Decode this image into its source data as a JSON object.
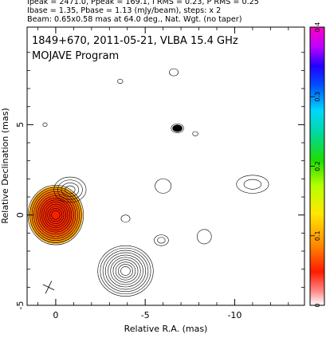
{
  "header": {
    "line1": "Ipeak = 2471.0, Ppeak = 169.1, I RMS = 0.23, P RMS = 0.25",
    "line2": "Ibase = 1.35, Pbase = 1.13 (mJy/beam), steps: x 2",
    "line3": "Beam: 0.65x0.58 mas at 64.0 deg., Nat. Wgt. (no taper)"
  },
  "chart_data": {
    "type": "contour",
    "title": "1849+670, 2011-05-21, VLBA 15.4 GHz",
    "subtitle": "MOJAVE Program",
    "xlabel": "Relative R.A. (mas)",
    "ylabel": "Relative Declination (mas)",
    "xlim": [
      1.6,
      -13.9
    ],
    "ylim": [
      -5.0,
      10.4
    ],
    "x_ticks": [
      {
        "value": 0,
        "label": "0"
      },
      {
        "value": -5,
        "label": "-5"
      },
      {
        "value": -10,
        "label": "-10"
      }
    ],
    "y_ticks": [
      {
        "value": -5,
        "label": "-5"
      },
      {
        "value": 0,
        "label": "0"
      },
      {
        "value": 5,
        "label": "5"
      }
    ],
    "colorbar": {
      "range": [
        0,
        0.4
      ],
      "ticks": [
        {
          "value": 0,
          "label": "0"
        },
        {
          "value": 0.1,
          "label": "0.1"
        },
        {
          "value": 0.2,
          "label": "0.2"
        },
        {
          "value": 0.3,
          "label": "0.3"
        },
        {
          "value": 0.4,
          "label": "0.4"
        }
      ]
    },
    "components": [
      {
        "name": "core",
        "x": 0.0,
        "y": 0.0,
        "rx": 1.55,
        "ry": 1.65,
        "levels": 13,
        "polarized": true
      },
      {
        "name": "inner-jet",
        "x": -0.8,
        "y": 1.4,
        "rx": 0.9,
        "ry": 0.7,
        "levels": 4,
        "polarized": false
      },
      {
        "name": "jet-knot-south",
        "x": -3.9,
        "y": -3.1,
        "rx": 1.55,
        "ry": 1.4,
        "levels": 10,
        "polarized": false
      },
      {
        "name": "knot-east",
        "x": -5.9,
        "y": -1.4,
        "rx": 0.4,
        "ry": 0.3,
        "levels": 2,
        "polarized": false
      },
      {
        "name": "knot-far-east",
        "x": -8.3,
        "y": -1.2,
        "rx": 0.4,
        "ry": 0.4,
        "levels": 1,
        "polarized": false
      },
      {
        "name": "knot-west",
        "x": -3.9,
        "y": -0.2,
        "rx": 0.25,
        "ry": 0.2,
        "levels": 1,
        "polarized": false
      },
      {
        "name": "knot-north",
        "x": -6.0,
        "y": 1.6,
        "rx": 0.45,
        "ry": 0.4,
        "levels": 1,
        "polarized": false
      },
      {
        "name": "knot-far-west",
        "x": -11.0,
        "y": 1.7,
        "rx": 0.9,
        "ry": 0.5,
        "levels": 2,
        "polarized": false
      },
      {
        "name": "polarized-spot",
        "x": -6.8,
        "y": 4.8,
        "rx": 0.35,
        "ry": 0.25,
        "levels": 1,
        "polarized": false
      },
      {
        "name": "small-knot-a",
        "x": -6.6,
        "y": 7.9,
        "rx": 0.25,
        "ry": 0.2,
        "levels": 1,
        "polarized": false
      },
      {
        "name": "small-knot-b",
        "x": -7.8,
        "y": 4.5,
        "rx": 0.15,
        "ry": 0.12,
        "levels": 1,
        "polarized": false
      },
      {
        "name": "small-knot-c",
        "x": -3.6,
        "y": 7.4,
        "rx": 0.15,
        "ry": 0.12,
        "levels": 1,
        "polarized": false
      },
      {
        "name": "small-knot-d",
        "x": 0.6,
        "y": 5.0,
        "rx": 0.12,
        "ry": 0.1,
        "levels": 1,
        "polarized": false
      }
    ],
    "beam": {
      "major": 0.65,
      "minor": 0.58,
      "pa_deg": 64.0
    }
  }
}
